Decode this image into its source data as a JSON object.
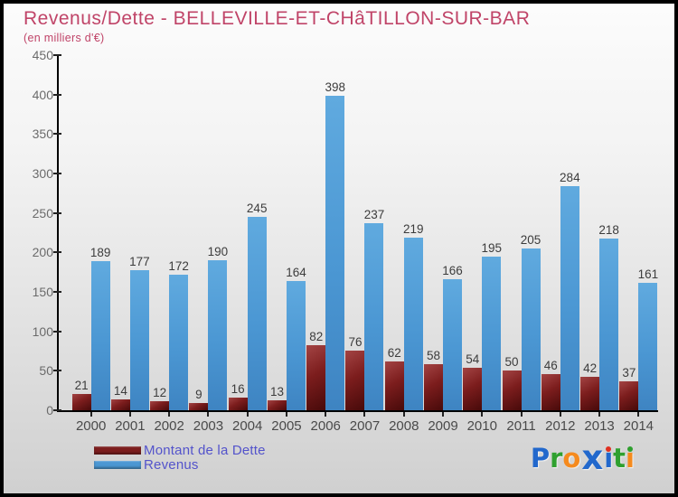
{
  "title": "Revenus/Dette - BELLEVILLE-ET-CHâTILLON-SUR-BAR",
  "subtitle": "(en milliers d'€)",
  "colors": {
    "title_text": "#c04468",
    "dette_bar": "#7c1d1d",
    "revenus_bar": "#4b97d3",
    "legend_text": "#5353cb",
    "axis": "#000000",
    "ytick_label": "#6b6b6b",
    "value_label": "#3c3c3c",
    "year_label": "#4a4a4a"
  },
  "chart_data": {
    "type": "bar",
    "title": "Revenus/Dette - BELLEVILLE-ET-CHâTILLON-SUR-BAR",
    "subtitle": "(en milliers d'€)",
    "categories": [
      "2000",
      "2001",
      "2002",
      "2003",
      "2004",
      "2005",
      "2006",
      "2007",
      "2008",
      "2009",
      "2010",
      "2011",
      "2012",
      "2013",
      "2014"
    ],
    "series": [
      {
        "name": "Montant de la Dette",
        "color": "#7c1d1d",
        "values": [
          21,
          14,
          12,
          9,
          16,
          13,
          82,
          76,
          62,
          58,
          54,
          50,
          46,
          42,
          37
        ]
      },
      {
        "name": "Revenus",
        "color": "#4b97d3",
        "values": [
          189,
          177,
          172,
          190,
          245,
          164,
          398,
          237,
          219,
          166,
          195,
          205,
          284,
          218,
          161
        ]
      }
    ],
    "ylim": [
      0,
      450
    ],
    "ytick_step": 50,
    "grid": false,
    "legend_position": "bottom-left",
    "value_labels_shown": true
  },
  "legend": {
    "items": [
      {
        "label": "Montant de la Dette",
        "color": "#7c1d1d"
      },
      {
        "label": "Revenus",
        "color": "#4b97d3"
      }
    ]
  },
  "brand": {
    "name": "Proxiti",
    "letters": [
      {
        "ch": "P",
        "color": "#2268cc"
      },
      {
        "ch": "r",
        "color": "#2fa02f"
      },
      {
        "ch": "o",
        "color": "#f58a1e"
      },
      {
        "ch": "x",
        "color": "#2268cc",
        "big": true
      },
      {
        "ch": "ı",
        "color": "#2268cc",
        "dot": "#e03020"
      },
      {
        "ch": "t",
        "color": "#2fa02f"
      },
      {
        "ch": "ı",
        "color": "#f58a1e",
        "dot": "#2fa02f"
      }
    ]
  }
}
